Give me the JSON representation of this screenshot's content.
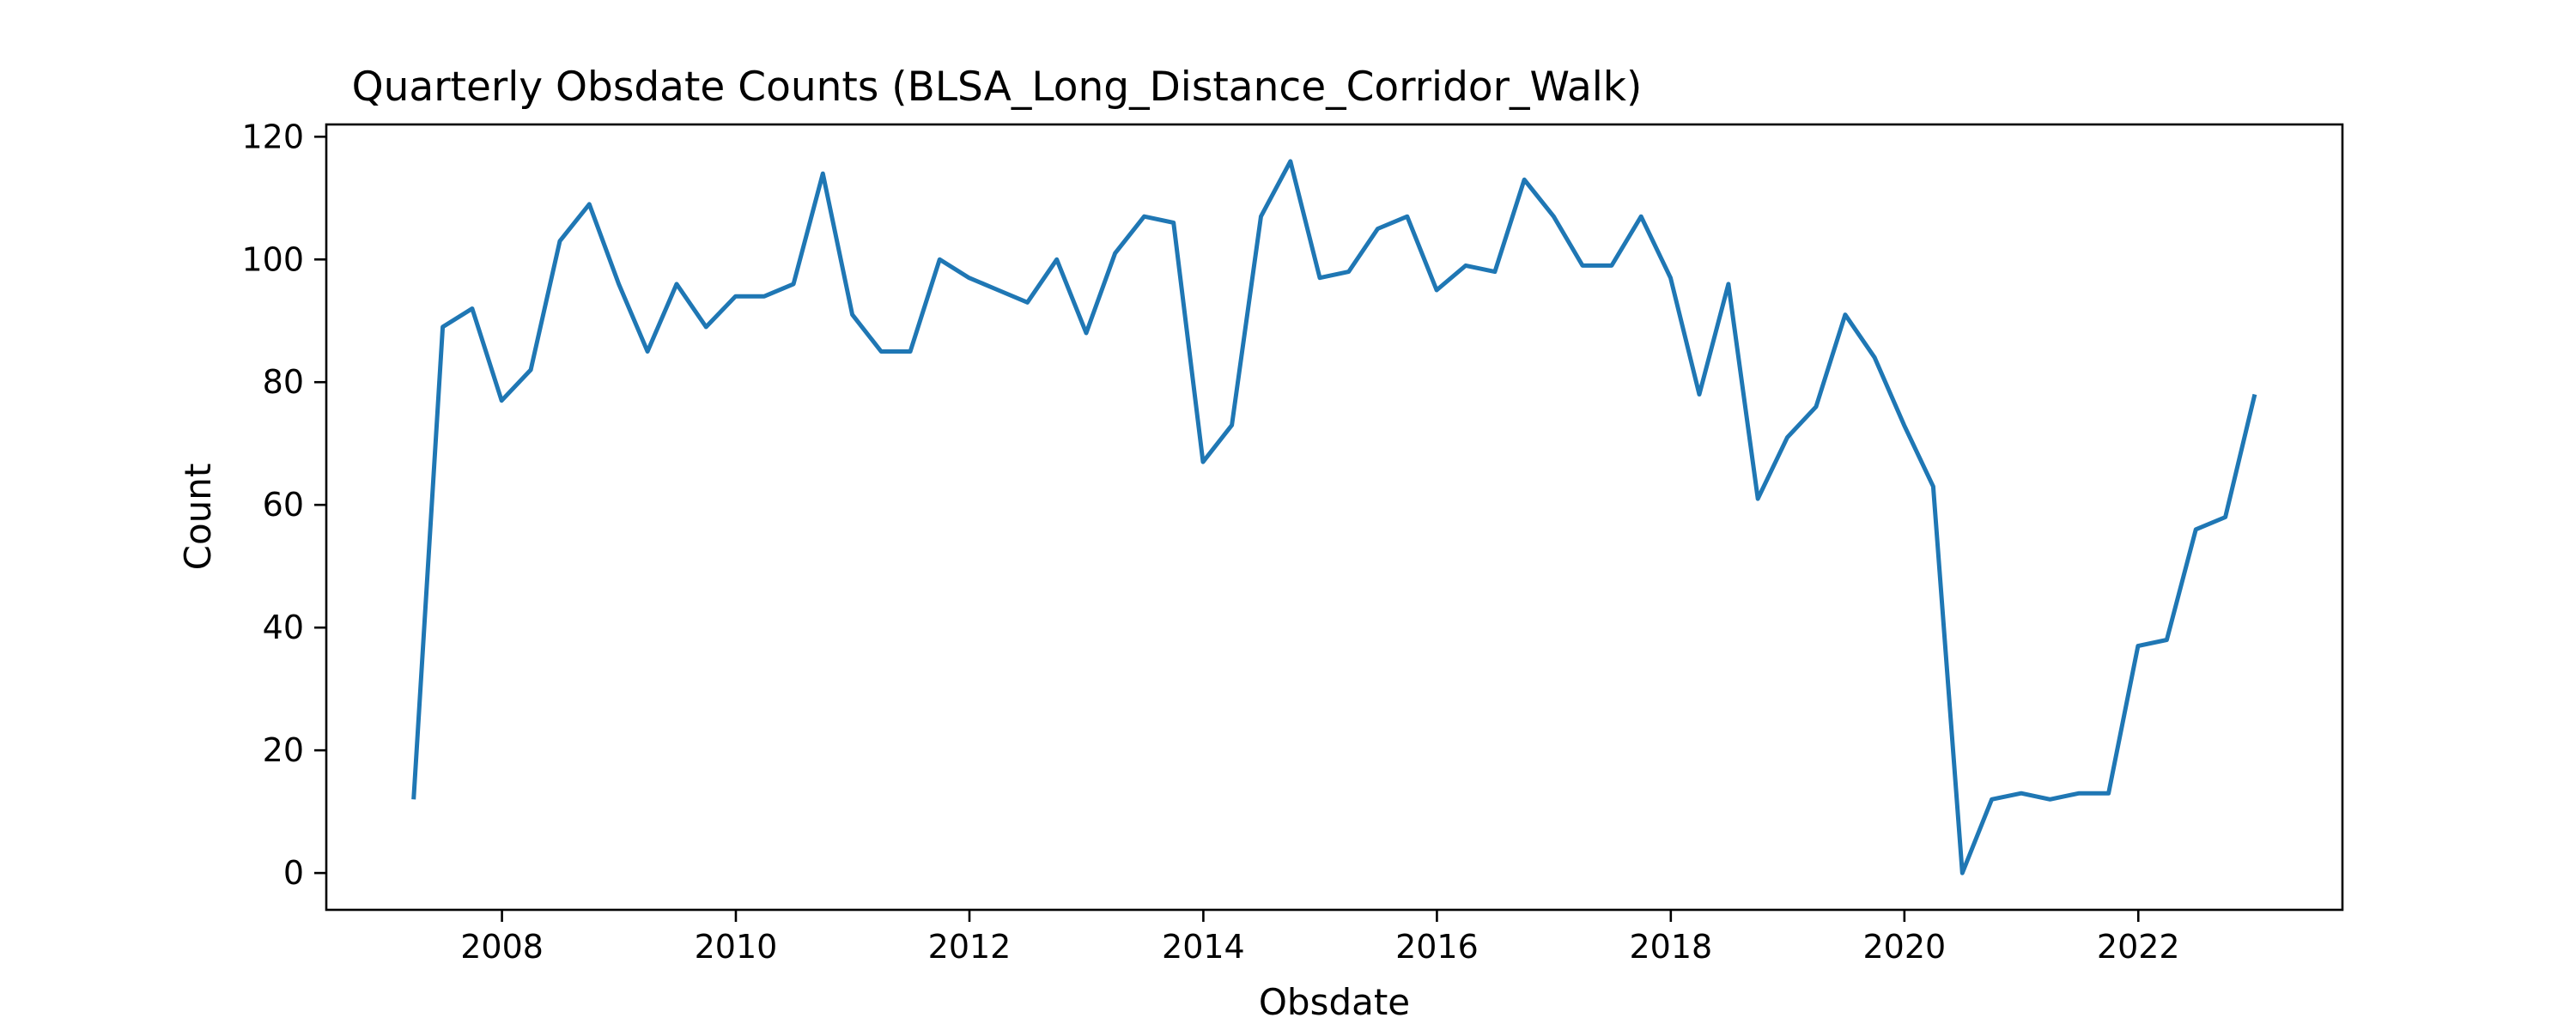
{
  "chart_data": {
    "type": "line",
    "title": "Quarterly Obsdate Counts (BLSA_Long_Distance_Corridor_Walk)",
    "xlabel": "Obsdate",
    "ylabel": "Count",
    "xlim": [
      "2006-07-01",
      "2023-10-01"
    ],
    "ylim": [
      -6,
      122
    ],
    "grid": false,
    "legend": "none",
    "colors": {
      "series": "#1f77b4"
    },
    "x_ticks": [
      {
        "date": "2008-01-01",
        "label": "2008"
      },
      {
        "date": "2010-01-01",
        "label": "2010"
      },
      {
        "date": "2012-01-01",
        "label": "2012"
      },
      {
        "date": "2014-01-01",
        "label": "2014"
      },
      {
        "date": "2016-01-01",
        "label": "2016"
      },
      {
        "date": "2018-01-01",
        "label": "2018"
      },
      {
        "date": "2020-01-01",
        "label": "2020"
      },
      {
        "date": "2022-01-01",
        "label": "2022"
      }
    ],
    "y_ticks": [
      {
        "value": 0,
        "label": "0"
      },
      {
        "value": 20,
        "label": "20"
      },
      {
        "value": 40,
        "label": "40"
      },
      {
        "value": 60,
        "label": "60"
      },
      {
        "value": 80,
        "label": "80"
      },
      {
        "value": 100,
        "label": "100"
      },
      {
        "value": 120,
        "label": "120"
      }
    ],
    "series": [
      {
        "x": [
          "2007-03-31",
          "2007-06-30",
          "2007-09-30",
          "2007-12-31",
          "2008-03-31",
          "2008-06-30",
          "2008-09-30",
          "2008-12-31",
          "2009-03-31",
          "2009-06-30",
          "2009-09-30",
          "2009-12-31",
          "2010-03-31",
          "2010-06-30",
          "2010-09-30",
          "2010-12-31",
          "2011-03-31",
          "2011-06-30",
          "2011-09-30",
          "2011-12-31",
          "2012-03-31",
          "2012-06-30",
          "2012-09-30",
          "2012-12-31",
          "2013-03-31",
          "2013-06-30",
          "2013-09-30",
          "2013-12-31",
          "2014-03-31",
          "2014-06-30",
          "2014-09-30",
          "2014-12-31",
          "2015-03-31",
          "2015-06-30",
          "2015-09-30",
          "2015-12-31",
          "2016-03-31",
          "2016-06-30",
          "2016-09-30",
          "2016-12-31",
          "2017-03-31",
          "2017-06-30",
          "2017-09-30",
          "2017-12-31",
          "2018-03-31",
          "2018-06-30",
          "2018-09-30",
          "2018-12-31",
          "2019-03-31",
          "2019-06-30",
          "2019-09-30",
          "2019-12-31",
          "2020-03-31",
          "2020-06-30",
          "2020-09-30",
          "2020-12-31",
          "2021-03-31",
          "2021-06-30",
          "2021-09-30",
          "2021-12-31",
          "2022-03-31",
          "2022-06-30",
          "2022-09-30",
          "2022-12-31"
        ],
        "values": [
          12,
          89,
          92,
          77,
          82,
          103,
          109,
          96,
          85,
          96,
          89,
          94,
          94,
          96,
          114,
          91,
          85,
          85,
          100,
          97,
          95,
          93,
          100,
          88,
          101,
          107,
          106,
          67,
          73,
          107,
          116,
          97,
          98,
          105,
          107,
          95,
          99,
          98,
          113,
          107,
          99,
          99,
          107,
          97,
          78,
          96,
          61,
          71,
          76,
          91,
          84,
          73,
          63,
          0,
          12,
          13,
          12,
          13,
          13,
          37,
          38,
          56,
          58,
          78
        ]
      }
    ]
  }
}
